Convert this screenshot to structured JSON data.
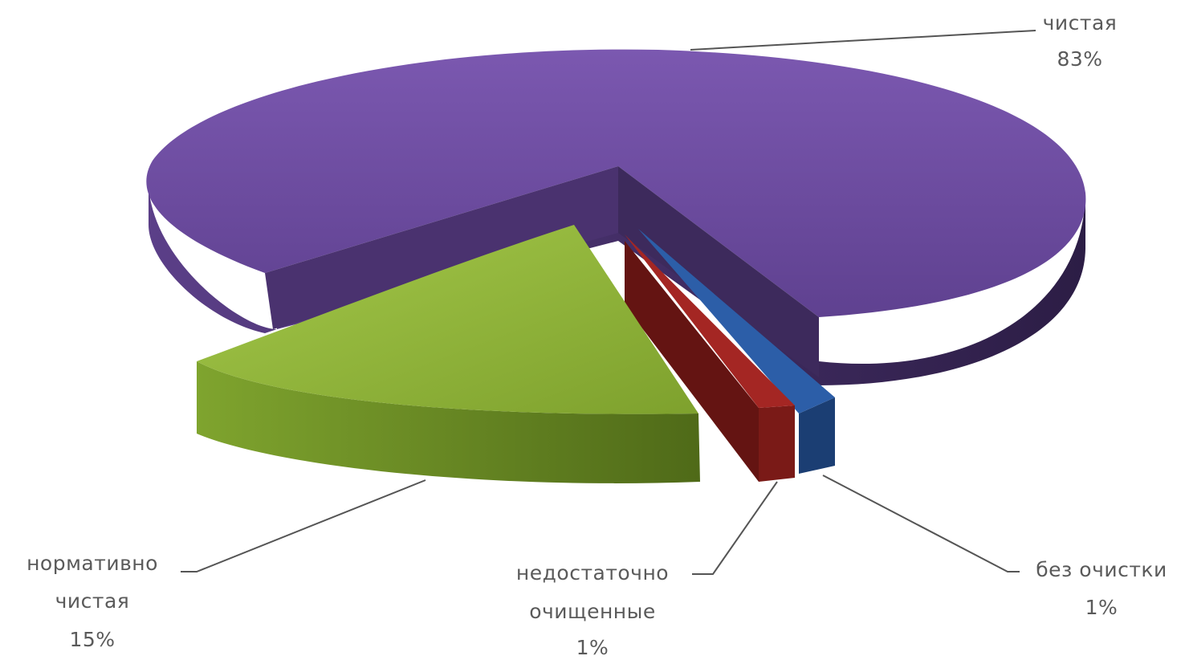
{
  "chart_data": {
    "type": "pie",
    "style": "3d-exploded",
    "legend": "none",
    "slices": [
      {
        "name": "чистая",
        "value": 83,
        "label_lines": [
          "чистая",
          "83%"
        ],
        "color": "#6a4a9c",
        "side_color": "#3b2856"
      },
      {
        "name": "без очистки",
        "value": 1,
        "label_lines": [
          "без очистки",
          "1%"
        ],
        "color": "#2c5ea8",
        "side_color": "#1b3e73"
      },
      {
        "name": "недостаточно очищенные",
        "value": 1,
        "label_lines": [
          "недостаточно",
          "очищенные",
          "1%"
        ],
        "color": "#a42623",
        "side_color": "#641412"
      },
      {
        "name": "нормативно чистая",
        "value": 15,
        "label_lines": [
          "нормативно",
          "чистая",
          "15%"
        ],
        "color": "#8db234",
        "side_color": "#56731c"
      }
    ]
  }
}
